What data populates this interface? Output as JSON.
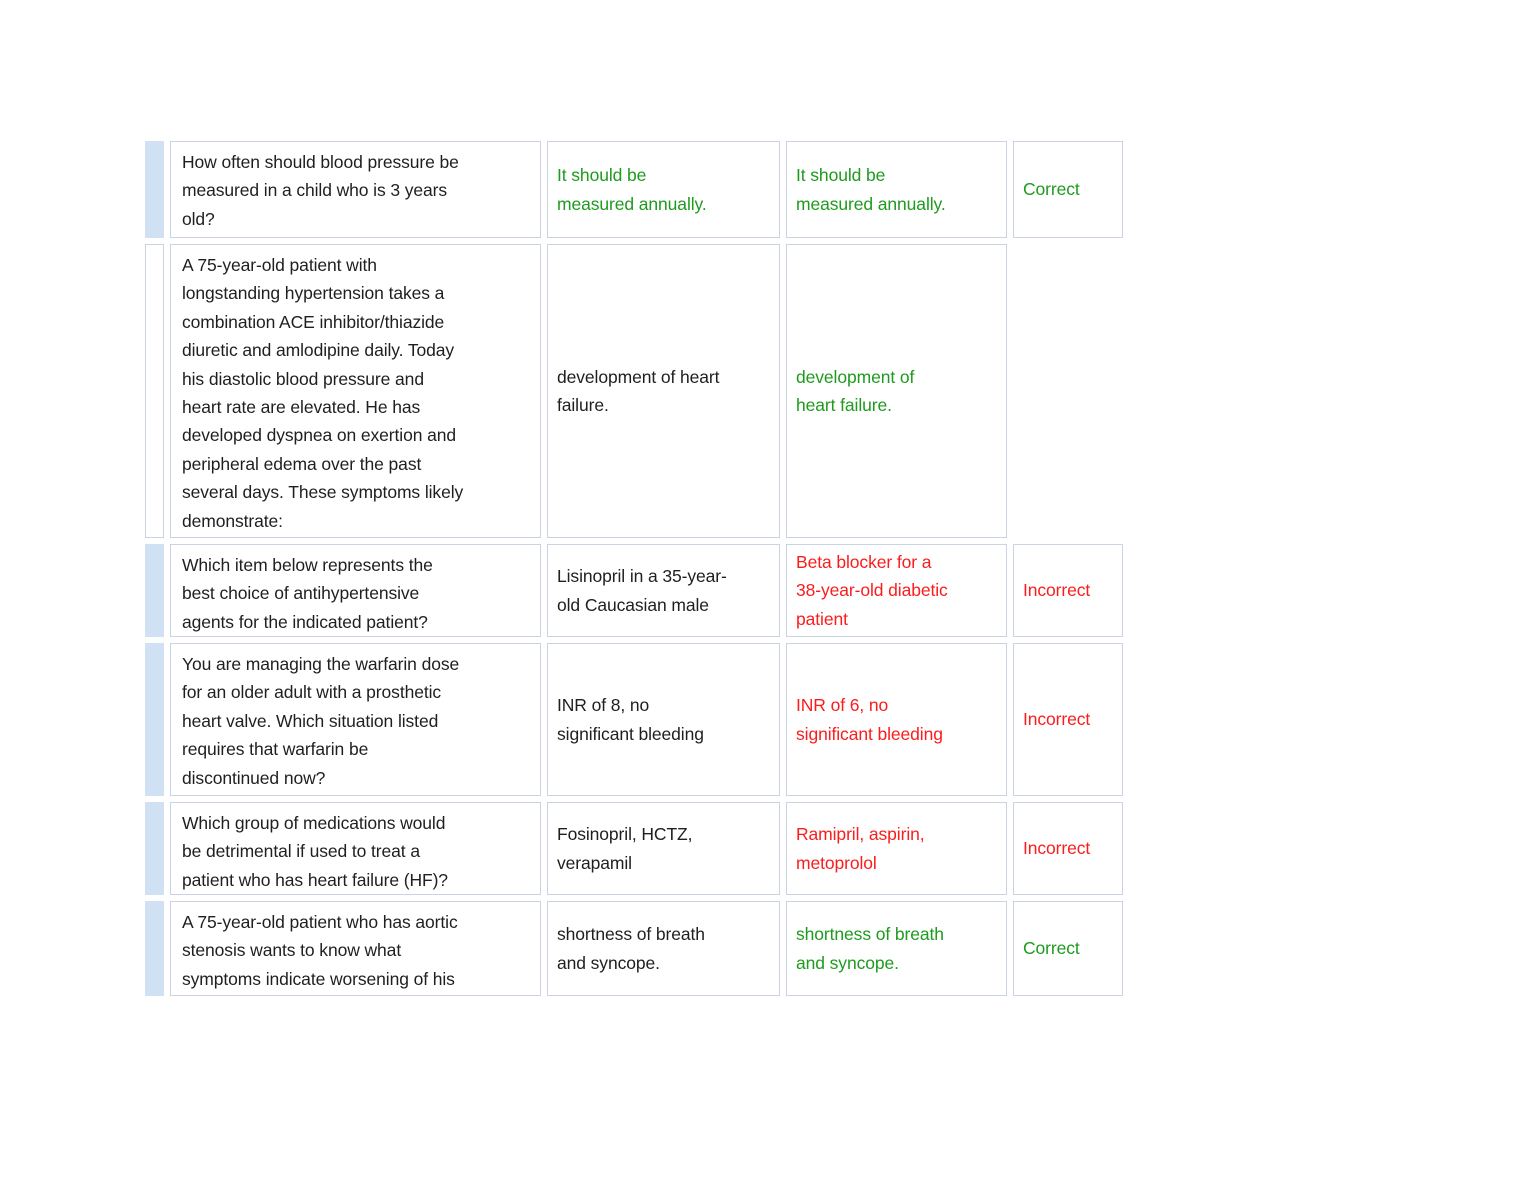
{
  "palette": {
    "green": "#1e9b1e",
    "red": "#fa1d1d",
    "black": "#1f1f1f",
    "cell_border": "#c9d3e2",
    "marker_blue": "#cfe1f3"
  },
  "table": {
    "rows": [
      {
        "marker": "blue",
        "question": "How often should blood pressure be\nmeasured in a child who is 3 years\nold?",
        "given_answer": {
          "text": "It should be\nmeasured annually.",
          "color": "green"
        },
        "correct_answer": {
          "text": "It should be\nmeasured annually.",
          "color": "green"
        },
        "result": {
          "text": "Correct",
          "color": "green"
        }
      },
      {
        "marker": "outline",
        "question": "A 75-year-old patient with\nlongstanding hypertension takes a\ncombination ACE inhibitor/thiazide\ndiuretic and amlodipine daily. Today\nhis diastolic blood pressure and\nheart rate are elevated. He has\ndeveloped dyspnea on exertion and\nperipheral edema over the past\nseveral days. These symptoms likely\ndemonstrate:",
        "given_answer": {
          "text": "development of heart\nfailure.",
          "color": "black"
        },
        "correct_answer": {
          "text": "development of\nheart failure.",
          "color": "green"
        },
        "result": null
      },
      {
        "marker": "blue",
        "question": "Which item below represents the\nbest choice of antihypertensive\nagents for the indicated patient?",
        "given_answer": {
          "text": "Lisinopril in a 35-year-\nold Caucasian male",
          "color": "black"
        },
        "correct_answer": {
          "text": "Beta blocker for a\n38-year-old diabetic\npatient",
          "color": "red"
        },
        "result": {
          "text": "Incorrect",
          "color": "red"
        }
      },
      {
        "marker": "blue",
        "question": "You are managing the warfarin dose\nfor an older adult with a prosthetic\nheart valve. Which situation listed\nrequires that warfarin be\ndiscontinued now?",
        "given_answer": {
          "text": "INR of 8, no\nsignificant bleeding",
          "color": "black"
        },
        "correct_answer": {
          "text": "INR of 6, no\nsignificant bleeding",
          "color": "red"
        },
        "result": {
          "text": "Incorrect",
          "color": "red"
        }
      },
      {
        "marker": "blue",
        "question": "Which group of medications would\nbe detrimental if used to treat a\npatient who has heart failure (HF)?",
        "given_answer": {
          "text": "Fosinopril, HCTZ,\nverapamil",
          "color": "black"
        },
        "correct_answer": {
          "text": "Ramipril, aspirin,\nmetoprolol",
          "color": "red"
        },
        "result": {
          "text": "Incorrect",
          "color": "red"
        }
      },
      {
        "marker": "blue",
        "question": "A 75-year-old patient who has aortic\nstenosis wants to know what\nsymptoms indicate worsening of his",
        "given_answer": {
          "text": "shortness of breath\nand syncope.",
          "color": "black"
        },
        "correct_answer": {
          "text": "shortness of breath\nand syncope.",
          "color": "green"
        },
        "result": {
          "text": "Correct",
          "color": "green"
        }
      }
    ]
  }
}
